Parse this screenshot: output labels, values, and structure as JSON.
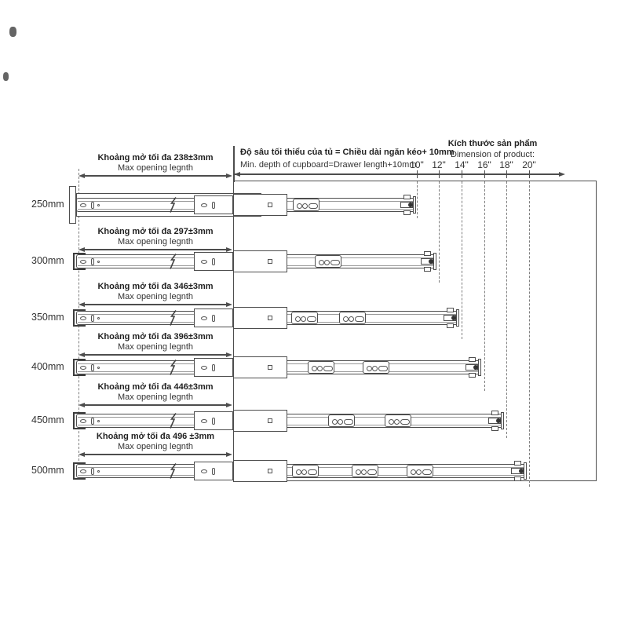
{
  "header": {
    "min_depth_vi": "Độ sâu tối thiểu của tủ = Chiều dài ngăn kéo+ 10mm",
    "min_depth_en": "Min. depth of cupboard=Drawer length+10mm",
    "product_size_vi": "Kích thước sản phẩm",
    "product_size_en": "Dimension of product:"
  },
  "scale": {
    "ticks": [
      "10\"",
      "12\"",
      "14\"",
      "16\"",
      "18\"",
      "20\""
    ]
  },
  "rows": [
    {
      "size": "250mm",
      "max_opening_vi": "Khoảng mở tối đa 238±3mm",
      "max_opening_en": "Max opening legnth"
    },
    {
      "size": "300mm",
      "max_opening_vi": "Khoảng mở tối đa 297±3mm",
      "max_opening_en": "Max opening legnth"
    },
    {
      "size": "350mm",
      "max_opening_vi": "Khoảng mở tối đa 346±3mm",
      "max_opening_en": "Max opening legnth"
    },
    {
      "size": "400mm",
      "max_opening_vi": "Khoảng mở tối đa 396±3mm",
      "max_opening_en": "Max opening legnth"
    },
    {
      "size": "450mm",
      "max_opening_vi": "Khoảng mở tối đa 446±3mm",
      "max_opening_en": "Max opening legnth"
    },
    {
      "size": "500mm",
      "max_opening_vi": "Khoảng mở tối đa 496 ±3mm",
      "max_opening_en": "Max opening legnth"
    }
  ],
  "colors": {
    "line": "#4d4d4d",
    "dashed": "#7e7e7e",
    "text": "#2b2b2b"
  }
}
